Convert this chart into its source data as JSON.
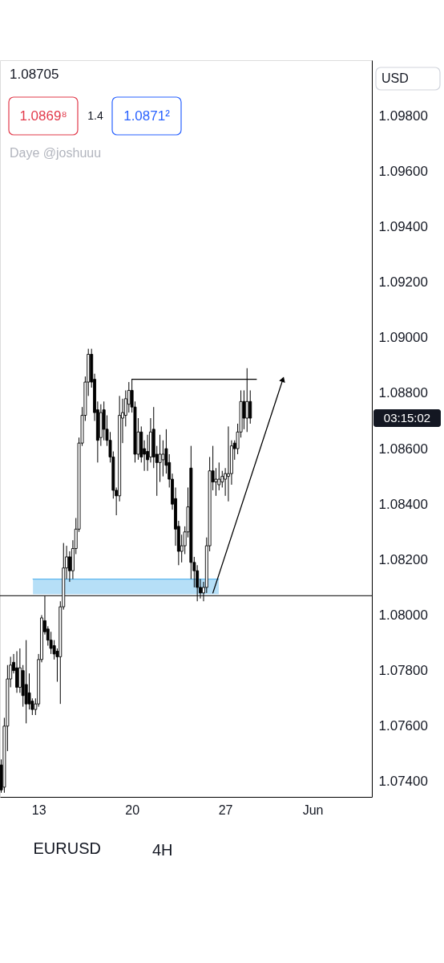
{
  "chart_data": {
    "type": "candlestick",
    "title": "EURUSD",
    "xlim": [
      10.107,
      37.99
    ],
    "ylim": [
      1.07345,
      1.1
    ],
    "xticks": [
      13,
      20,
      27,
      {
        "value": 33.55,
        "label": "Jun"
      }
    ],
    "yticks": [
      {
        "value": 1.074,
        "label": "1.07400"
      },
      {
        "value": 1.076,
        "label": "1.07600"
      },
      {
        "value": 1.078,
        "label": "1.07800"
      },
      {
        "value": 1.08,
        "label": "1.08000"
      },
      {
        "value": 1.082,
        "label": "1.08200"
      },
      {
        "value": 1.084,
        "label": "1.08400"
      },
      {
        "value": 1.086,
        "label": "1.08600"
      },
      {
        "value": 1.088,
        "label": "1.08800"
      },
      {
        "value": 1.09,
        "label": "1.09000"
      },
      {
        "value": 1.092,
        "label": "1.09200"
      },
      {
        "value": 1.094,
        "label": "1.09400"
      },
      {
        "value": 1.096,
        "label": "1.09600"
      },
      {
        "value": 1.098,
        "label": "1.09800"
      }
    ],
    "x": [
      10.2,
      10.43,
      10.67,
      10.9,
      11.13,
      11.37,
      11.6,
      11.83,
      12.07,
      12.3,
      12.53,
      12.77,
      13.0,
      13.23,
      13.47,
      13.7,
      13.93,
      14.17,
      14.4,
      14.63,
      14.87,
      15.1,
      15.33,
      15.57,
      15.8,
      16.03,
      16.27,
      16.5,
      16.73,
      16.97,
      17.2,
      17.43,
      17.67,
      17.9,
      18.13,
      18.37,
      18.6,
      18.83,
      19.07,
      19.3,
      19.53,
      19.77,
      20.0,
      20.23,
      20.47,
      20.7,
      20.93,
      21.17,
      21.4,
      21.63,
      21.87,
      22.1,
      22.33,
      22.57,
      22.8,
      23.03,
      23.27,
      23.5,
      23.73,
      23.97,
      24.2,
      24.43,
      24.67,
      24.9,
      25.13,
      25.37,
      25.6,
      25.83,
      26.07,
      26.3,
      26.53,
      26.77,
      27.0,
      27.23,
      27.47,
      27.7,
      27.93,
      28.17,
      28.4,
      28.63,
      28.87
    ],
    "ohlc": [
      [
        1.0746,
        1.0748,
        1.0736,
        1.0737
      ],
      [
        1.0738,
        1.0763,
        1.0736,
        1.076
      ],
      [
        1.076,
        1.0782,
        1.0751,
        1.0777
      ],
      [
        1.0777,
        1.0785,
        1.0774,
        1.0782
      ],
      [
        1.0783,
        1.0786,
        1.0779,
        1.078
      ],
      [
        1.0781,
        1.0787,
        1.0772,
        1.0774
      ],
      [
        1.0774,
        1.0788,
        1.0772,
        1.0781
      ],
      [
        1.078,
        1.0782,
        1.0767,
        1.0771
      ],
      [
        1.0775,
        1.0791,
        1.0761,
        1.0768
      ],
      [
        1.0772,
        1.0779,
        1.0766,
        1.0768
      ],
      [
        1.0769,
        1.077,
        1.0764,
        1.0766
      ],
      [
        1.0766,
        1.077,
        1.0764,
        1.0768
      ],
      [
        1.0768,
        1.0786,
        1.0767,
        1.0784
      ],
      [
        1.0784,
        1.08,
        1.0783,
        1.0799
      ],
      [
        1.0798,
        1.0807,
        1.0793,
        1.0794
      ],
      [
        1.0795,
        1.0796,
        1.0789,
        1.0791
      ],
      [
        1.0791,
        1.0794,
        1.0786,
        1.0788
      ],
      [
        1.0789,
        1.0791,
        1.0784,
        1.0786
      ],
      [
        1.0787,
        1.0788,
        1.0776,
        1.0785
      ],
      [
        1.0785,
        1.0805,
        1.0768,
        1.0803
      ],
      [
        1.0803,
        1.0826,
        1.0802,
        1.0817
      ],
      [
        1.0817,
        1.0825,
        1.0813,
        1.0821
      ],
      [
        1.0821,
        1.0823,
        1.0812,
        1.0816
      ],
      [
        1.0816,
        1.0827,
        1.0813,
        1.0824
      ],
      [
        1.0824,
        1.0835,
        1.0822,
        1.0831
      ],
      [
        1.0831,
        1.0864,
        1.083,
        1.0862
      ],
      [
        1.0862,
        1.0875,
        1.0861,
        1.0872
      ],
      [
        1.0872,
        1.0886,
        1.087,
        1.0884
      ],
      [
        1.0884,
        1.0896,
        1.0879,
        1.0894
      ],
      [
        1.0894,
        1.0896,
        1.0882,
        1.0884
      ],
      [
        1.0885,
        1.0887,
        1.087,
        1.0873
      ],
      [
        1.0874,
        1.0877,
        1.0855,
        1.0863
      ],
      [
        1.0864,
        1.0876,
        1.0861,
        1.0873
      ],
      [
        1.0874,
        1.0877,
        1.0863,
        1.0867
      ],
      [
        1.0867,
        1.0872,
        1.0861,
        1.0863
      ],
      [
        1.0863,
        1.0866,
        1.0855,
        1.0857
      ],
      [
        1.0857,
        1.0859,
        1.0842,
        1.0845
      ],
      [
        1.0845,
        1.0846,
        1.0836,
        1.0843
      ],
      [
        1.0843,
        1.0879,
        1.0841,
        1.0872
      ],
      [
        1.0871,
        1.0878,
        1.0862,
        1.0873
      ],
      [
        1.0872,
        1.0881,
        1.0868,
        1.0878
      ],
      [
        1.0876,
        1.0884,
        1.0873,
        1.0881
      ],
      [
        1.0881,
        1.0885,
        1.0873,
        1.0875
      ],
      [
        1.0875,
        1.0877,
        1.0855,
        1.0858
      ],
      [
        1.0858,
        1.0871,
        1.0856,
        1.0866
      ],
      [
        1.0866,
        1.0868,
        1.0855,
        1.0857
      ],
      [
        1.086,
        1.0863,
        1.0852,
        1.0858
      ],
      [
        1.0859,
        1.0865,
        1.0852,
        1.0856
      ],
      [
        1.0857,
        1.0871,
        1.0855,
        1.0866
      ],
      [
        1.0867,
        1.0875,
        1.0853,
        1.0857
      ],
      [
        1.0858,
        1.0861,
        1.0843,
        1.0855
      ],
      [
        1.0855,
        1.0865,
        1.0848,
        1.0858
      ],
      [
        1.0856,
        1.0863,
        1.085,
        1.0858
      ],
      [
        1.086,
        1.0867,
        1.0851,
        1.0854
      ],
      [
        1.0855,
        1.0858,
        1.0846,
        1.0849
      ],
      [
        1.0849,
        1.0851,
        1.0838,
        1.084
      ],
      [
        1.0842,
        1.0846,
        1.0825,
        1.0831
      ],
      [
        1.0832,
        1.0834,
        1.0818,
        1.0823
      ],
      [
        1.0823,
        1.0829,
        1.0819,
        1.0825
      ],
      [
        1.0825,
        1.0832,
        1.0822,
        1.083
      ],
      [
        1.083,
        1.0846,
        1.0828,
        1.0839
      ],
      [
        1.0853,
        1.0861,
        1.0813,
        1.0819
      ],
      [
        1.0819,
        1.0821,
        1.081,
        1.0816
      ],
      [
        1.0816,
        1.0818,
        1.0805,
        1.081
      ],
      [
        1.081,
        1.0813,
        1.0806,
        1.0808
      ],
      [
        1.0808,
        1.0812,
        1.0805,
        1.081
      ],
      [
        1.081,
        1.0828,
        1.0808,
        1.0825
      ],
      [
        1.0825,
        1.0857,
        1.0823,
        1.0852
      ],
      [
        1.0852,
        1.0861,
        1.0845,
        1.0848
      ],
      [
        1.0848,
        1.0853,
        1.0843,
        1.0849
      ],
      [
        1.0847,
        1.0855,
        1.0845,
        1.0849
      ],
      [
        1.0848,
        1.0852,
        1.0846,
        1.085
      ],
      [
        1.0849,
        1.0853,
        1.0843,
        1.0851
      ],
      [
        1.085,
        1.0868,
        1.0841,
        1.0851
      ],
      [
        1.0851,
        1.0863,
        1.0847,
        1.0861
      ],
      [
        1.0862,
        1.0863,
        1.0856,
        1.086
      ],
      [
        1.086,
        1.0869,
        1.0858,
        1.0866
      ],
      [
        1.0866,
        1.0881,
        1.0864,
        1.0877
      ],
      [
        1.0877,
        1.0881,
        1.0867,
        1.0871
      ],
      [
        1.0871,
        1.0889,
        1.0866,
        1.0877
      ],
      [
        1.0877,
        1.0881,
        1.0869,
        1.0871
      ]
    ],
    "color": "#000000",
    "colors": [
      "#000000",
      "#ffffff",
      "#ffffff",
      "#ffffff",
      "#000000",
      "#000000",
      "#ffffff",
      "#000000",
      "#000000",
      "#000000",
      "#000000",
      "#ffffff",
      "#ffffff",
      "#ffffff",
      "#000000",
      "#000000",
      "#000000",
      "#000000",
      "#000000",
      "#ffffff",
      "#ffffff",
      "#ffffff",
      "#000000",
      "#ffffff",
      "#ffffff",
      "#ffffff",
      "#ffffff",
      "#ffffff",
      "#ffffff",
      "#000000",
      "#000000",
      "#000000",
      "#ffffff",
      "#000000",
      "#000000",
      "#000000",
      "#000000",
      "#000000",
      "#ffffff",
      "#ffffff",
      "#ffffff",
      "#ffffff",
      "#000000",
      "#000000",
      "#ffffff",
      "#000000",
      "#000000",
      "#000000",
      "#ffffff",
      "#000000",
      "#000000",
      "#ffffff",
      "#ffffff",
      "#000000",
      "#000000",
      "#000000",
      "#000000",
      "#000000",
      "#ffffff",
      "#ffffff",
      "#ffffff",
      "#000000",
      "#000000",
      "#000000",
      "#000000",
      "#ffffff",
      "#ffffff",
      "#ffffff",
      "#000000",
      "#ffffff",
      "#ffffff",
      "#ffffff",
      "#ffffff",
      "#ffffff",
      "#ffffff",
      "#000000",
      "#ffffff",
      "#ffffff",
      "#000000",
      "#ffffff",
      "#000000"
    ],
    "series": [
      {
        "type": "line",
        "x": [
          12.58,
          26.51
        ],
        "values": [
          1.0813,
          1.0813
        ],
        "upper": [
          1.0813,
          1.0813
        ],
        "lower": [
          1.08075,
          1.08075
        ],
        "color": "#5eb7ee"
      },
      {
        "type": "line",
        "x": [
          20.0,
          29.33
        ],
        "values": [
          1.0885,
          1.0885
        ],
        "color": "#000000"
      },
      {
        "type": "line",
        "x": [
          26.07,
          31.32
        ],
        "values": [
          1.0808,
          1.0885
        ],
        "color": "#000000",
        "marker": "triangle"
      }
    ],
    "ref_lines": [
      {
        "axis": "y",
        "value": 1.0807,
        "color": "#000000"
      }
    ],
    "annotations": [
      "1.08705",
      "1.0869⁸",
      "1.4",
      "1.0871²",
      "Daye @joshuuu",
      "USD",
      "03:15:02",
      "4H"
    ]
  }
}
